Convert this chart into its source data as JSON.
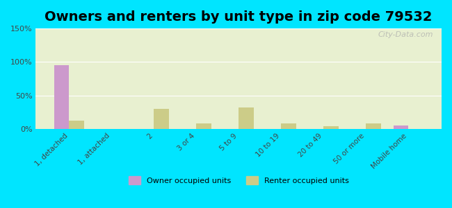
{
  "title": "Owners and renters by unit type in zip code 79532",
  "categories": [
    "1, detached",
    "1, attached",
    "2",
    "3 or 4",
    "5 to 9",
    "10 to 19",
    "20 to 49",
    "50 or more",
    "Mobile home"
  ],
  "owner_values": [
    95,
    0,
    0,
    0,
    0,
    0,
    0,
    0,
    5
  ],
  "renter_values": [
    12,
    0,
    30,
    8,
    32,
    8,
    4,
    8,
    0
  ],
  "owner_color": "#cc99cc",
  "renter_color": "#cccc88",
  "background_top": "#e8f0d0",
  "background_bottom": "#f5f5e8",
  "outer_bg": "#00e5ff",
  "ylim": [
    0,
    150
  ],
  "yticks": [
    0,
    50,
    100,
    150
  ],
  "ytick_labels": [
    "0%",
    "50%",
    "100%",
    "150%"
  ],
  "title_fontsize": 14,
  "watermark": "City-Data.com",
  "bar_width": 0.35,
  "legend_owner": "Owner occupied units",
  "legend_renter": "Renter occupied units"
}
